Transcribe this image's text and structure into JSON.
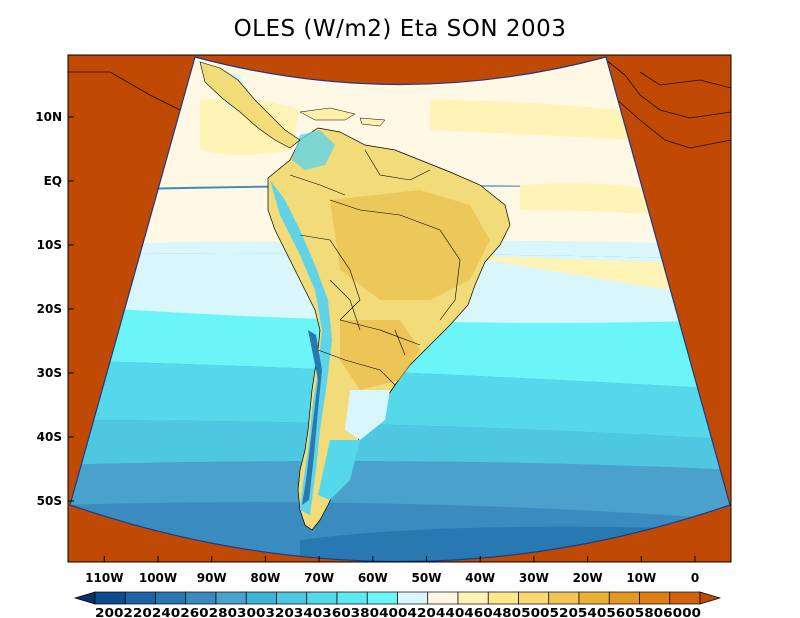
{
  "title": "OLES (W/m2) Eta SON 2003",
  "lat_labels": [
    "10N",
    "EQ",
    "10S",
    "20S",
    "30S",
    "40S",
    "50S"
  ],
  "lat_values": [
    10,
    0,
    -10,
    -20,
    -30,
    -40,
    -50
  ],
  "lon_labels": [
    "110W",
    "100W",
    "90W",
    "80W",
    "70W",
    "60W",
    "50W",
    "40W",
    "30W",
    "20W",
    "10W",
    "0"
  ],
  "lon_values": [
    -110,
    -100,
    -90,
    -80,
    -70,
    -60,
    -50,
    -40,
    -30,
    -20,
    -10,
    0
  ],
  "colorbar": {
    "label_text": "2002202402602803003203403603804004204404604805005205405605806000",
    "levels": [
      200,
      220,
      240,
      260,
      280,
      300,
      320,
      340,
      360,
      380,
      400,
      420,
      440,
      460,
      480,
      500,
      520,
      540,
      560,
      580,
      600
    ],
    "colors": [
      "#08306b",
      "#0e4b8f",
      "#1b63a5",
      "#2878b2",
      "#3a8cc0",
      "#4aa2cc",
      "#3fb3d4",
      "#4ec8e0",
      "#55d8ea",
      "#5fe8f0",
      "#6cf5f8",
      "#d8f6fc",
      "#fff8e4",
      "#fff3b5",
      "#fde98a",
      "#f8d870",
      "#f2c455",
      "#eab138",
      "#e39826",
      "#dc7f18",
      "#d0630e",
      "#c04a04"
    ]
  },
  "colors": {
    "outside_domain": "#c04a04",
    "ocean_tropical": "#fff8e4",
    "ocean_light_cyan": "#d8f6fc",
    "ocean_cyan": "#6cf5f8",
    "ocean_mid": "#55d8ea",
    "ocean_deep": "#4aa2cc",
    "land_main": "#f2dc7a",
    "land_light": "#fdf0a8",
    "andes": "#5fd3e8"
  }
}
